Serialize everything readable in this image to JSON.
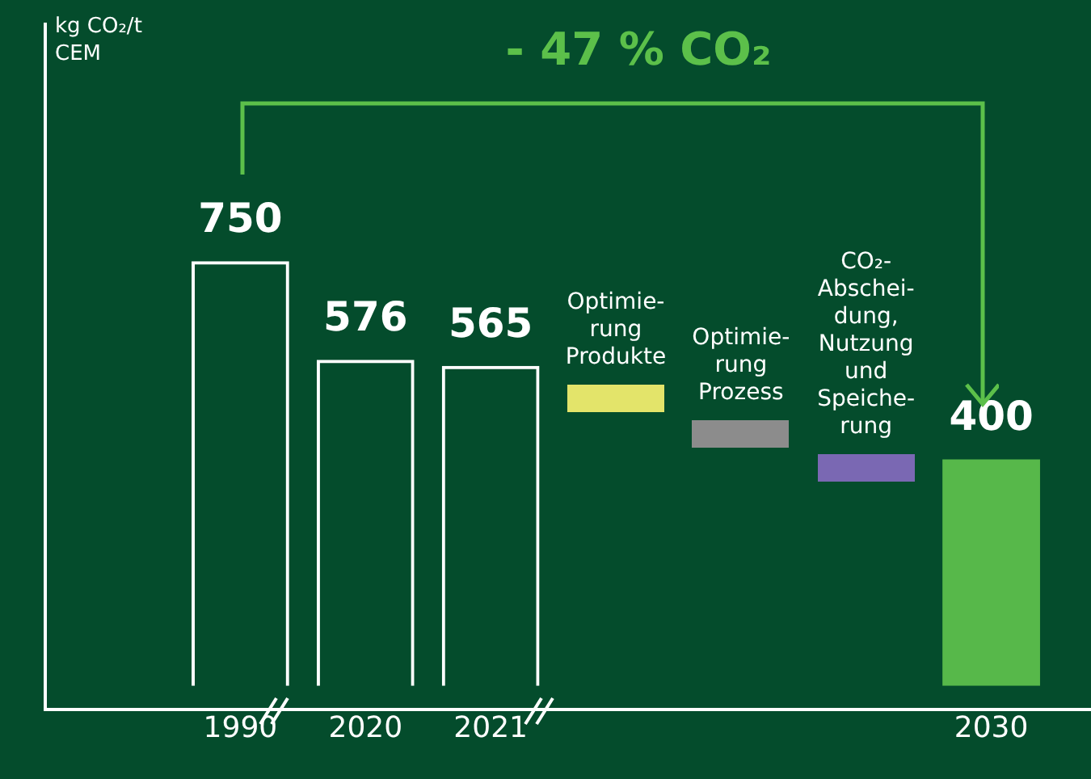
{
  "chart_data": {
    "type": "bar",
    "title": "- 47 % CO₂",
    "categories": [
      "1990",
      "2020",
      "2021",
      null,
      null,
      null,
      "2030"
    ],
    "series": [
      {
        "color": "#ffffff",
        "values": [
          750,
          576,
          565,
          null,
          null,
          null,
          null
        ]
      },
      {
        "color": "#57b84a",
        "values": [
          null,
          null,
          null,
          null,
          null,
          null,
          400
        ]
      }
    ],
    "annotations": [
      "kg CO₂/t CEM",
      "Optimie-\nrung\nProdukte",
      "Optimie-\nrung\nProzess",
      "CO₂-\nAbschei-\ndung,\nNutzung\nund\nSpeiche-\nrung"
    ],
    "data_labels": true,
    "legend": false,
    "grid": false
  }
}
